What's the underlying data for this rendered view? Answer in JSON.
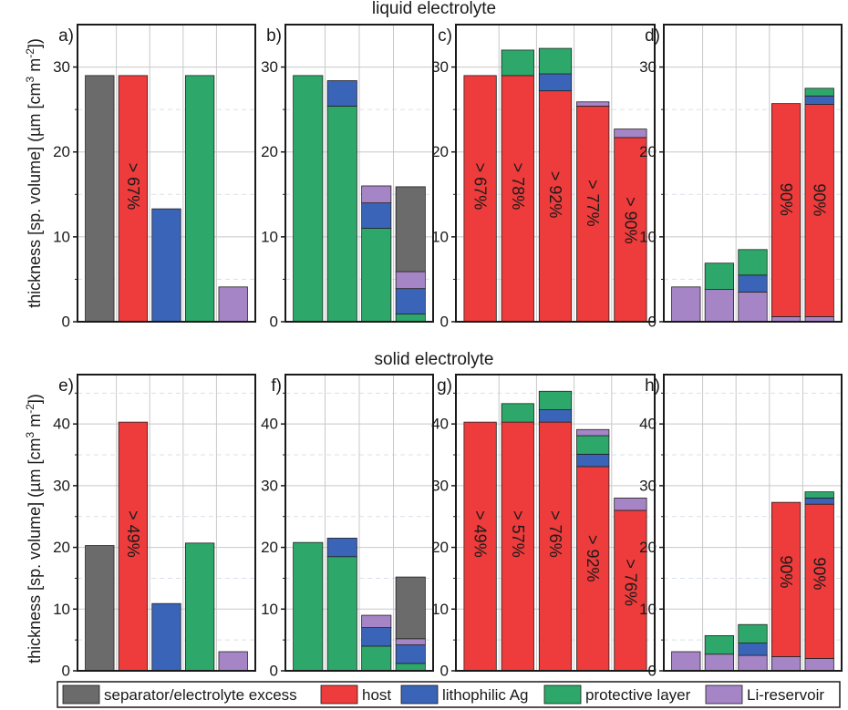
{
  "colors": {
    "separator": "#6b6b6b",
    "host": "#ee3b3b",
    "lithophilic": "#3a64b8",
    "protective": "#2ea86a",
    "reservoir": "#a585c6",
    "grid": "#c8c8c8",
    "subgrid": "#d8e1ea"
  },
  "row_titles": [
    "liquid electrolyte",
    "solid electrolyte"
  ],
  "ylabel_prefix": "thickness [sp. volume] (µm [cm",
  "ylabel_sup1": "3",
  "ylabel_mid": " m",
  "ylabel_sup2": "-2",
  "ylabel_suffix": "])",
  "legend": [
    {
      "key": "separator",
      "label": "separator/electrolyte excess"
    },
    {
      "key": "host",
      "label": "host"
    },
    {
      "key": "lithophilic",
      "label": "lithophilic Ag"
    },
    {
      "key": "protective",
      "label": "protective layer"
    },
    {
      "key": "reservoir",
      "label": "Li-reservoir"
    }
  ],
  "chart_data": [
    {
      "type": "bar",
      "panel": "a)",
      "row": 0,
      "col": 0,
      "ylim": [
        0,
        35
      ],
      "yticks": [
        0,
        10,
        20,
        30
      ],
      "title": "liquid electrolyte",
      "bars": [
        {
          "segments": [
            {
              "layer": "separator",
              "value": 29
            }
          ]
        },
        {
          "segments": [
            {
              "layer": "host",
              "value": 29
            }
          ],
          "label": "> 67%"
        },
        {
          "segments": [
            {
              "layer": "lithophilic",
              "value": 13.3
            }
          ]
        },
        {
          "segments": [
            {
              "layer": "protective",
              "value": 29
            }
          ]
        },
        {
          "segments": [
            {
              "layer": "reservoir",
              "value": 4.1
            }
          ]
        }
      ]
    },
    {
      "type": "bar",
      "panel": "b)",
      "row": 0,
      "col": 1,
      "ylim": [
        0,
        35
      ],
      "yticks": [
        0,
        10,
        20,
        30
      ],
      "bars": [
        {
          "segments": [
            {
              "layer": "protective",
              "value": 29
            }
          ]
        },
        {
          "segments": [
            {
              "layer": "protective",
              "value": 25.4
            },
            {
              "layer": "lithophilic",
              "value": 3
            }
          ]
        },
        {
          "segments": [
            {
              "layer": "protective",
              "value": 11
            },
            {
              "layer": "lithophilic",
              "value": 3
            },
            {
              "layer": "reservoir",
              "value": 2
            }
          ]
        },
        {
          "segments": [
            {
              "layer": "protective",
              "value": 0.9
            },
            {
              "layer": "lithophilic",
              "value": 3
            },
            {
              "layer": "reservoir",
              "value": 2
            },
            {
              "layer": "separator",
              "value": 10
            }
          ]
        }
      ]
    },
    {
      "type": "bar",
      "panel": "c)",
      "row": 0,
      "col": 2,
      "ylim": [
        0,
        35
      ],
      "yticks": [
        0,
        10,
        20,
        30
      ],
      "bars": [
        {
          "segments": [
            {
              "layer": "host",
              "value": 29
            }
          ],
          "label": "> 67%"
        },
        {
          "segments": [
            {
              "layer": "host",
              "value": 29
            },
            {
              "layer": "protective",
              "value": 3
            }
          ],
          "label": "> 78%"
        },
        {
          "segments": [
            {
              "layer": "host",
              "value": 27.2
            },
            {
              "layer": "lithophilic",
              "value": 2
            },
            {
              "layer": "protective",
              "value": 3
            }
          ],
          "label": "> 92%"
        },
        {
          "segments": [
            {
              "layer": "host",
              "value": 25.4
            },
            {
              "layer": "reservoir",
              "value": 0.5
            }
          ],
          "label": "> 77%"
        },
        {
          "segments": [
            {
              "layer": "host",
              "value": 21.7
            },
            {
              "layer": "reservoir",
              "value": 1
            }
          ],
          "label": "> 90%"
        }
      ]
    },
    {
      "type": "bar",
      "panel": "d)",
      "row": 0,
      "col": 3,
      "ylim": [
        0,
        35
      ],
      "yticks": [
        0,
        10,
        20,
        30
      ],
      "bars": [
        {
          "segments": [
            {
              "layer": "reservoir",
              "value": 4.1
            }
          ]
        },
        {
          "segments": [
            {
              "layer": "reservoir",
              "value": 3.8
            },
            {
              "layer": "protective",
              "value": 3.1
            }
          ]
        },
        {
          "segments": [
            {
              "layer": "reservoir",
              "value": 3.5
            },
            {
              "layer": "lithophilic",
              "value": 2
            },
            {
              "layer": "protective",
              "value": 3
            }
          ]
        },
        {
          "segments": [
            {
              "layer": "reservoir",
              "value": 0.6
            },
            {
              "layer": "host",
              "value": 25.1
            }
          ],
          "label": "90%"
        },
        {
          "segments": [
            {
              "layer": "reservoir",
              "value": 0.6
            },
            {
              "layer": "host",
              "value": 25
            },
            {
              "layer": "lithophilic",
              "value": 1
            },
            {
              "layer": "protective",
              "value": 0.9
            }
          ],
          "label": "90%"
        }
      ]
    },
    {
      "type": "bar",
      "panel": "e)",
      "row": 1,
      "col": 0,
      "ylim": [
        0,
        48
      ],
      "yticks": [
        0,
        10,
        20,
        30,
        40
      ],
      "title": "solid electrolyte",
      "bars": [
        {
          "segments": [
            {
              "layer": "separator",
              "value": 20.3
            }
          ]
        },
        {
          "segments": [
            {
              "layer": "host",
              "value": 40.3
            }
          ],
          "label": "> 49%"
        },
        {
          "segments": [
            {
              "layer": "lithophilic",
              "value": 10.9
            }
          ]
        },
        {
          "segments": [
            {
              "layer": "protective",
              "value": 20.7
            }
          ]
        },
        {
          "segments": [
            {
              "layer": "reservoir",
              "value": 3.1
            }
          ]
        }
      ]
    },
    {
      "type": "bar",
      "panel": "f)",
      "row": 1,
      "col": 1,
      "ylim": [
        0,
        48
      ],
      "yticks": [
        0,
        10,
        20,
        30,
        40
      ],
      "bars": [
        {
          "segments": [
            {
              "layer": "protective",
              "value": 20.8
            }
          ]
        },
        {
          "segments": [
            {
              "layer": "protective",
              "value": 18.5
            },
            {
              "layer": "lithophilic",
              "value": 3
            }
          ]
        },
        {
          "segments": [
            {
              "layer": "protective",
              "value": 4
            },
            {
              "layer": "lithophilic",
              "value": 3
            },
            {
              "layer": "reservoir",
              "value": 2
            }
          ]
        },
        {
          "segments": [
            {
              "layer": "protective",
              "value": 1.2
            },
            {
              "layer": "lithophilic",
              "value": 3
            },
            {
              "layer": "reservoir",
              "value": 1
            },
            {
              "layer": "separator",
              "value": 10
            }
          ]
        }
      ]
    },
    {
      "type": "bar",
      "panel": "g)",
      "row": 1,
      "col": 2,
      "ylim": [
        0,
        48
      ],
      "yticks": [
        0,
        10,
        20,
        30,
        40
      ],
      "bars": [
        {
          "segments": [
            {
              "layer": "host",
              "value": 40.3
            }
          ],
          "label": "> 49%"
        },
        {
          "segments": [
            {
              "layer": "host",
              "value": 40.3
            },
            {
              "layer": "protective",
              "value": 3
            }
          ],
          "label": "> 57%"
        },
        {
          "segments": [
            {
              "layer": "host",
              "value": 40.3
            },
            {
              "layer": "lithophilic",
              "value": 2
            },
            {
              "layer": "protective",
              "value": 3
            }
          ],
          "label": "> 76%"
        },
        {
          "segments": [
            {
              "layer": "host",
              "value": 33.1
            },
            {
              "layer": "lithophilic",
              "value": 2
            },
            {
              "layer": "protective",
              "value": 3
            },
            {
              "layer": "reservoir",
              "value": 1
            }
          ],
          "label": "> 92%"
        },
        {
          "segments": [
            {
              "layer": "host",
              "value": 26
            },
            {
              "layer": "reservoir",
              "value": 2
            }
          ],
          "label": "> 76%"
        }
      ]
    },
    {
      "type": "bar",
      "panel": "h)",
      "row": 1,
      "col": 3,
      "ylim": [
        0,
        48
      ],
      "yticks": [
        0,
        10,
        20,
        30,
        40
      ],
      "bars": [
        {
          "segments": [
            {
              "layer": "reservoir",
              "value": 3.1
            }
          ]
        },
        {
          "segments": [
            {
              "layer": "reservoir",
              "value": 2.7
            },
            {
              "layer": "protective",
              "value": 3
            }
          ]
        },
        {
          "segments": [
            {
              "layer": "reservoir",
              "value": 2.5
            },
            {
              "layer": "lithophilic",
              "value": 2
            },
            {
              "layer": "protective",
              "value": 3
            }
          ]
        },
        {
          "segments": [
            {
              "layer": "reservoir",
              "value": 2.3
            },
            {
              "layer": "host",
              "value": 25
            }
          ],
          "label": "90%"
        },
        {
          "segments": [
            {
              "layer": "reservoir",
              "value": 2
            },
            {
              "layer": "host",
              "value": 25
            },
            {
              "layer": "lithophilic",
              "value": 1
            },
            {
              "layer": "protective",
              "value": 1
            }
          ],
          "label": "90%"
        }
      ]
    }
  ]
}
